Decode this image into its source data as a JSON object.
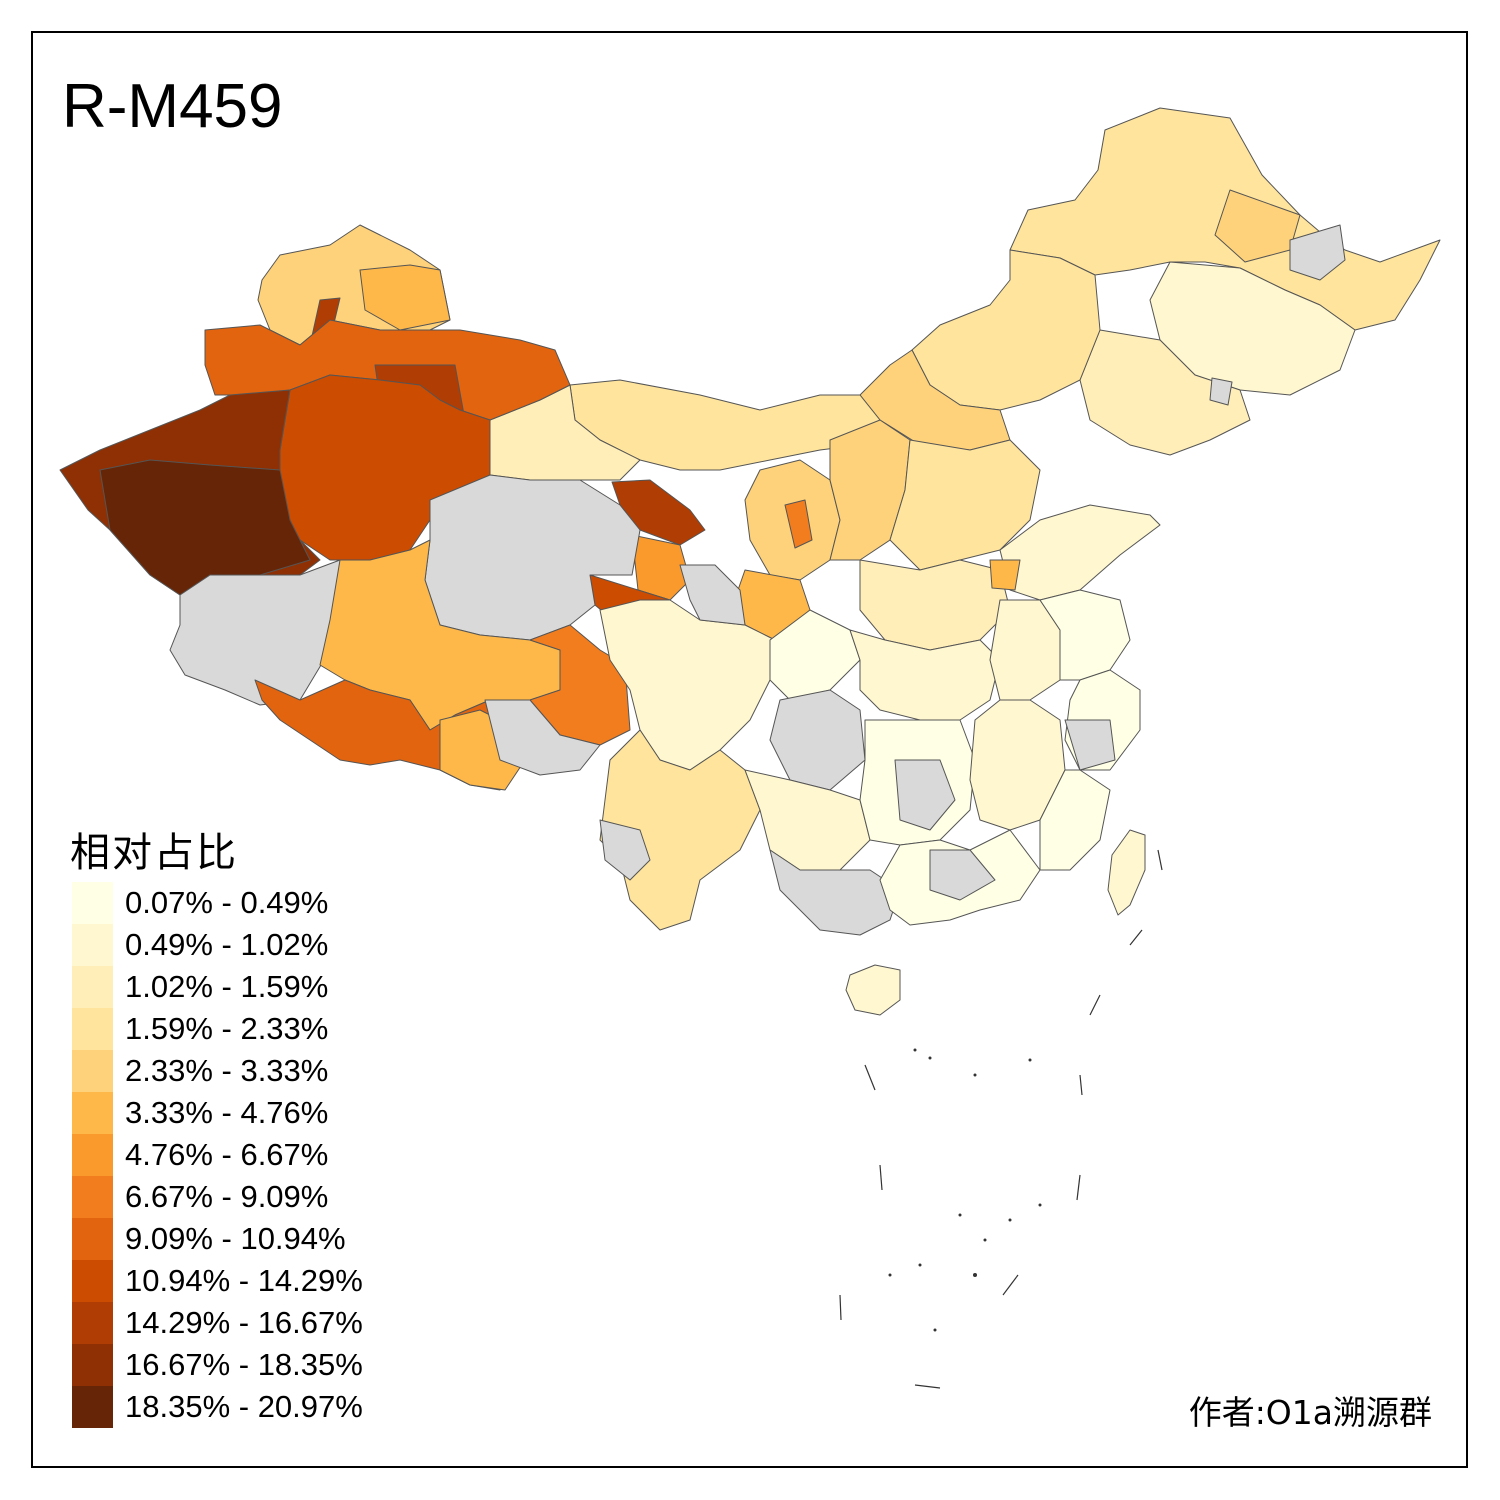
{
  "title": "R-M459",
  "legend": {
    "title": "相对占比",
    "items": [
      {
        "label": "0.07% - 0.49%",
        "color": "#ffffe5"
      },
      {
        "label": "0.49% - 1.02%",
        "color": "#fff7cf"
      },
      {
        "label": "1.02% - 1.59%",
        "color": "#ffeeb8"
      },
      {
        "label": "1.59% - 2.33%",
        "color": "#fee49c"
      },
      {
        "label": "2.33% - 3.33%",
        "color": "#fed27a"
      },
      {
        "label": "3.33% - 4.76%",
        "color": "#feb849"
      },
      {
        "label": "4.76% - 6.67%",
        "color": "#fb9a2c"
      },
      {
        "label": "6.67% - 9.09%",
        "color": "#f27d1e"
      },
      {
        "label": "9.09% - 10.94%",
        "color": "#e3640f"
      },
      {
        "label": "10.94% - 14.29%",
        "color": "#cc4c02"
      },
      {
        "label": "14.29% - 16.67%",
        "color": "#b03d04"
      },
      {
        "label": "16.67% - 18.35%",
        "color": "#8e3004"
      },
      {
        "label": "18.35% - 20.97%",
        "color": "#662506"
      }
    ],
    "no_data_color": "#d9d9d9"
  },
  "author": "作者:O1a溯源群"
}
